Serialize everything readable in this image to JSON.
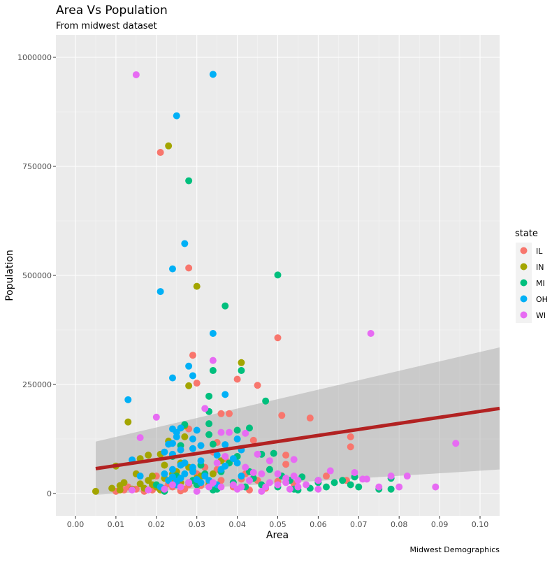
{
  "chart_data": {
    "type": "scatter",
    "title": "Area Vs Population",
    "subtitle": "From midwest dataset",
    "caption": "Midwest Demographics",
    "xlabel": "Area",
    "ylabel": "Population",
    "xlim": [
      -0.005,
      0.105
    ],
    "ylim": [
      -50000,
      1050000
    ],
    "x_ticks": [
      0.0,
      0.01,
      0.02,
      0.03,
      0.04,
      0.05,
      0.06,
      0.07,
      0.08,
      0.09,
      0.1
    ],
    "x_tick_labels": [
      "0.00",
      "0.01",
      "0.02",
      "0.03",
      "0.04",
      "0.05",
      "0.06",
      "0.07",
      "0.08",
      "0.09",
      "0.10"
    ],
    "y_ticks": [
      0,
      250000,
      500000,
      750000,
      1000000
    ],
    "y_tick_labels": [
      "0",
      "250000",
      "500000",
      "750000",
      "1000000"
    ],
    "grid": true,
    "legend": {
      "title": "state",
      "position": "right",
      "entries": [
        {
          "label": "IL",
          "color": "#f8766d"
        },
        {
          "label": "IN",
          "color": "#a3a500"
        },
        {
          "label": "MI",
          "color": "#00bf7d"
        },
        {
          "label": "OH",
          "color": "#00b0f6"
        },
        {
          "label": "WI",
          "color": "#e76bf3"
        }
      ]
    },
    "trend_line": {
      "method": "lm",
      "color": "#b22222",
      "x": [
        0.005,
        0.105
      ],
      "y": [
        57000,
        195000
      ],
      "band_lower": [
        -3000,
        55000
      ],
      "band_upper": [
        119000,
        335000
      ]
    },
    "series": [
      {
        "name": "IL",
        "points": [
          [
            0.021,
            782000
          ],
          [
            0.028,
            517000
          ],
          [
            0.029,
            317000
          ],
          [
            0.03,
            253000
          ],
          [
            0.05,
            357000
          ],
          [
            0.04,
            262000
          ],
          [
            0.045,
            248000
          ],
          [
            0.036,
            183000
          ],
          [
            0.038,
            183000
          ],
          [
            0.051,
            179000
          ],
          [
            0.058,
            173000
          ],
          [
            0.068,
            130000
          ],
          [
            0.068,
            107000
          ],
          [
            0.035,
            117000
          ],
          [
            0.044,
            122000
          ],
          [
            0.028,
            148000
          ],
          [
            0.034,
            95000
          ],
          [
            0.037,
            80000
          ],
          [
            0.052,
            88000
          ],
          [
            0.052,
            67000
          ],
          [
            0.042,
            45000
          ],
          [
            0.045,
            30000
          ],
          [
            0.062,
            40000
          ],
          [
            0.067,
            30000
          ],
          [
            0.015,
            10000
          ],
          [
            0.017,
            5000
          ],
          [
            0.019,
            8000
          ],
          [
            0.022,
            12000
          ],
          [
            0.024,
            15000
          ],
          [
            0.026,
            6000
          ],
          [
            0.028,
            20000
          ],
          [
            0.031,
            18000
          ],
          [
            0.033,
            25000
          ],
          [
            0.036,
            30000
          ],
          [
            0.039,
            15000
          ],
          [
            0.043,
            8000
          ],
          [
            0.047,
            12000
          ],
          [
            0.05,
            28000
          ],
          [
            0.054,
            22000
          ],
          [
            0.01,
            5000
          ],
          [
            0.013,
            15000
          ],
          [
            0.02,
            40000
          ],
          [
            0.025,
            35000
          ],
          [
            0.03,
            45000
          ],
          [
            0.032,
            60000
          ],
          [
            0.035,
            55000
          ],
          [
            0.041,
            33000
          ],
          [
            0.012,
            8000
          ],
          [
            0.023,
            22000
          ],
          [
            0.027,
            10000
          ]
        ]
      },
      {
        "name": "IN",
        "points": [
          [
            0.023,
            797000
          ],
          [
            0.03,
            475000
          ],
          [
            0.041,
            300000
          ],
          [
            0.028,
            247000
          ],
          [
            0.013,
            164000
          ],
          [
            0.027,
            155000
          ],
          [
            0.021,
            90000
          ],
          [
            0.018,
            88000
          ],
          [
            0.016,
            80000
          ],
          [
            0.022,
            65000
          ],
          [
            0.01,
            63000
          ],
          [
            0.027,
            130000
          ],
          [
            0.023,
            120000
          ],
          [
            0.036,
            75000
          ],
          [
            0.025,
            50000
          ],
          [
            0.019,
            40000
          ],
          [
            0.012,
            25000
          ],
          [
            0.005,
            5000
          ],
          [
            0.009,
            12000
          ],
          [
            0.011,
            18000
          ],
          [
            0.014,
            10000
          ],
          [
            0.016,
            22000
          ],
          [
            0.018,
            30000
          ],
          [
            0.02,
            15000
          ],
          [
            0.022,
            35000
          ],
          [
            0.024,
            45000
          ],
          [
            0.026,
            25000
          ],
          [
            0.029,
            55000
          ],
          [
            0.031,
            40000
          ],
          [
            0.033,
            20000
          ],
          [
            0.015,
            45000
          ],
          [
            0.017,
            12000
          ],
          [
            0.021,
            8000
          ],
          [
            0.026,
            70000
          ],
          [
            0.03,
            35000
          ],
          [
            0.011,
            8000
          ],
          [
            0.019,
            20000
          ],
          [
            0.024,
            28000
          ],
          [
            0.028,
            60000
          ],
          [
            0.034,
            45000
          ]
        ]
      },
      {
        "name": "MI",
        "points": [
          [
            0.028,
            717000
          ],
          [
            0.05,
            501000
          ],
          [
            0.037,
            430000
          ],
          [
            0.047,
            212000
          ],
          [
            0.033,
            223000
          ],
          [
            0.034,
            282000
          ],
          [
            0.041,
            282000
          ],
          [
            0.033,
            188000
          ],
          [
            0.027,
            158000
          ],
          [
            0.033,
            160000
          ],
          [
            0.043,
            150000
          ],
          [
            0.04,
            145000
          ],
          [
            0.033,
            135000
          ],
          [
            0.034,
            113000
          ],
          [
            0.026,
            110000
          ],
          [
            0.046,
            90000
          ],
          [
            0.049,
            92000
          ],
          [
            0.04,
            85000
          ],
          [
            0.038,
            70000
          ],
          [
            0.043,
            50000
          ],
          [
            0.048,
            55000
          ],
          [
            0.051,
            40000
          ],
          [
            0.053,
            30000
          ],
          [
            0.056,
            38000
          ],
          [
            0.06,
            30000
          ],
          [
            0.064,
            25000
          ],
          [
            0.066,
            30000
          ],
          [
            0.069,
            38000
          ],
          [
            0.07,
            15000
          ],
          [
            0.075,
            10000
          ],
          [
            0.078,
            10000
          ],
          [
            0.078,
            35000
          ],
          [
            0.068,
            20000
          ],
          [
            0.062,
            15000
          ],
          [
            0.055,
            8000
          ],
          [
            0.054,
            10000
          ],
          [
            0.046,
            20000
          ],
          [
            0.042,
            15000
          ],
          [
            0.039,
            25000
          ],
          [
            0.035,
            10000
          ],
          [
            0.03,
            20000
          ],
          [
            0.032,
            45000
          ],
          [
            0.029,
            30000
          ],
          [
            0.025,
            40000
          ],
          [
            0.022,
            5000
          ],
          [
            0.027,
            70000
          ],
          [
            0.031,
            65000
          ],
          [
            0.036,
            50000
          ],
          [
            0.044,
            35000
          ],
          [
            0.058,
            12000
          ],
          [
            0.06,
            25000
          ],
          [
            0.05,
            15000
          ],
          [
            0.024,
            85000
          ],
          [
            0.02,
            20000
          ],
          [
            0.034,
            8000
          ]
        ]
      },
      {
        "name": "OH",
        "points": [
          [
            0.034,
            961000
          ],
          [
            0.025,
            866000
          ],
          [
            0.027,
            573000
          ],
          [
            0.024,
            515000
          ],
          [
            0.021,
            463000
          ],
          [
            0.034,
            367000
          ],
          [
            0.028,
            292000
          ],
          [
            0.029,
            270000
          ],
          [
            0.024,
            265000
          ],
          [
            0.037,
            227000
          ],
          [
            0.013,
            215000
          ],
          [
            0.026,
            150000
          ],
          [
            0.024,
            148000
          ],
          [
            0.03,
            145000
          ],
          [
            0.025,
            140000
          ],
          [
            0.025,
            130000
          ],
          [
            0.029,
            125000
          ],
          [
            0.024,
            115000
          ],
          [
            0.023,
            113000
          ],
          [
            0.037,
            112000
          ],
          [
            0.04,
            125000
          ],
          [
            0.031,
            110000
          ],
          [
            0.029,
            103000
          ],
          [
            0.026,
            100000
          ],
          [
            0.041,
            100000
          ],
          [
            0.022,
            95000
          ],
          [
            0.024,
            90000
          ],
          [
            0.035,
            88000
          ],
          [
            0.039,
            80000
          ],
          [
            0.014,
            77000
          ],
          [
            0.027,
            70000
          ],
          [
            0.031,
            75000
          ],
          [
            0.026,
            65000
          ],
          [
            0.037,
            63000
          ],
          [
            0.04,
            70000
          ],
          [
            0.029,
            60000
          ],
          [
            0.024,
            55000
          ],
          [
            0.036,
            55000
          ],
          [
            0.041,
            40000
          ],
          [
            0.016,
            40000
          ],
          [
            0.024,
            38000
          ],
          [
            0.026,
            35000
          ],
          [
            0.03,
            32000
          ],
          [
            0.033,
            30000
          ],
          [
            0.028,
            25000
          ],
          [
            0.025,
            20000
          ],
          [
            0.023,
            30000
          ],
          [
            0.027,
            45000
          ],
          [
            0.032,
            40000
          ],
          [
            0.035,
            20000
          ],
          [
            0.021,
            15000
          ],
          [
            0.025,
            28000
          ],
          [
            0.029,
            50000
          ],
          [
            0.031,
            25000
          ],
          [
            0.022,
            45000
          ]
        ]
      },
      {
        "name": "WI",
        "points": [
          [
            0.015,
            960000
          ],
          [
            0.073,
            367000
          ],
          [
            0.034,
            305000
          ],
          [
            0.032,
            195000
          ],
          [
            0.02,
            175000
          ],
          [
            0.094,
            115000
          ],
          [
            0.016,
            128000
          ],
          [
            0.036,
            140000
          ],
          [
            0.038,
            140000
          ],
          [
            0.042,
            138000
          ],
          [
            0.045,
            90000
          ],
          [
            0.054,
            78000
          ],
          [
            0.048,
            75000
          ],
          [
            0.063,
            52000
          ],
          [
            0.069,
            48000
          ],
          [
            0.071,
            33000
          ],
          [
            0.072,
            33000
          ],
          [
            0.075,
            15000
          ],
          [
            0.078,
            40000
          ],
          [
            0.08,
            15000
          ],
          [
            0.082,
            40000
          ],
          [
            0.089,
            15000
          ],
          [
            0.06,
            30000
          ],
          [
            0.057,
            20000
          ],
          [
            0.055,
            15000
          ],
          [
            0.052,
            35000
          ],
          [
            0.05,
            45000
          ],
          [
            0.046,
            45000
          ],
          [
            0.044,
            48000
          ],
          [
            0.048,
            25000
          ],
          [
            0.047,
            15000
          ],
          [
            0.043,
            30000
          ],
          [
            0.041,
            15000
          ],
          [
            0.04,
            10000
          ],
          [
            0.039,
            20000
          ],
          [
            0.036,
            15000
          ],
          [
            0.034,
            25000
          ],
          [
            0.03,
            5000
          ],
          [
            0.028,
            25000
          ],
          [
            0.026,
            15000
          ],
          [
            0.024,
            20000
          ],
          [
            0.022,
            10000
          ],
          [
            0.018,
            8000
          ],
          [
            0.014,
            8000
          ],
          [
            0.052,
            25000
          ],
          [
            0.054,
            40000
          ],
          [
            0.053,
            10000
          ],
          [
            0.055,
            30000
          ],
          [
            0.046,
            5000
          ],
          [
            0.05,
            20000
          ],
          [
            0.033,
            15000
          ],
          [
            0.035,
            70000
          ],
          [
            0.037,
            85000
          ],
          [
            0.042,
            60000
          ],
          [
            0.06,
            10000
          ]
        ]
      }
    ]
  }
}
